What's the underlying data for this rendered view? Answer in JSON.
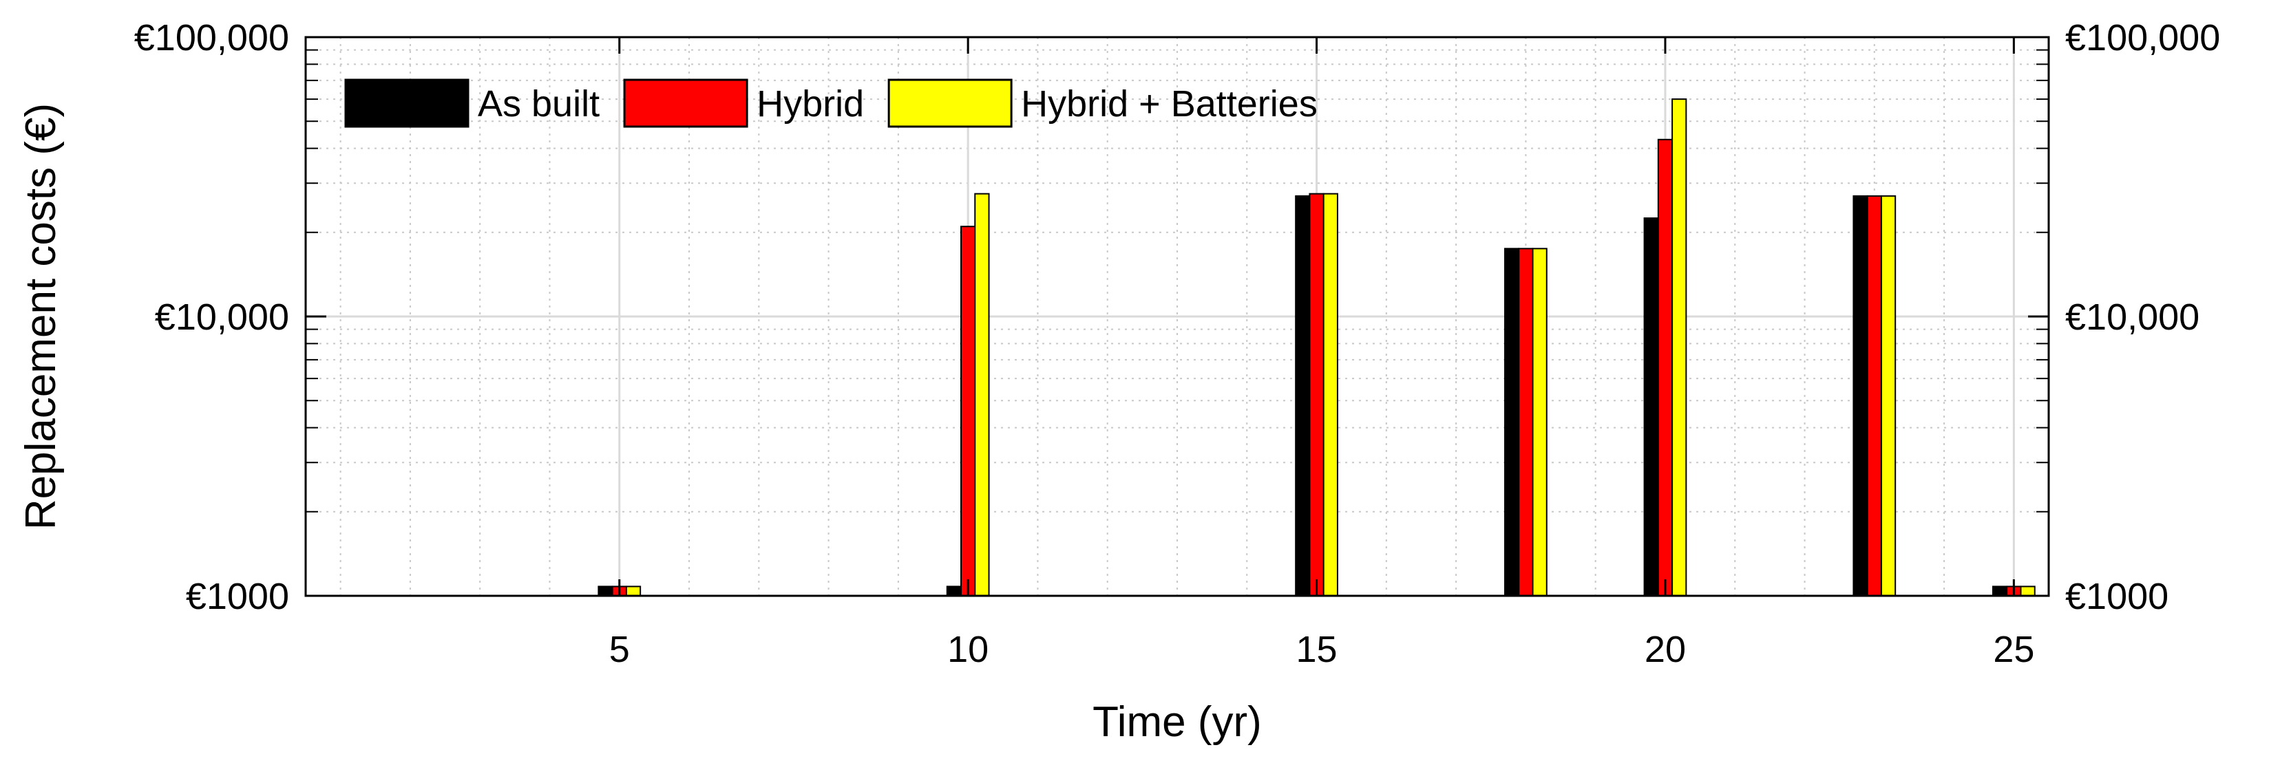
{
  "chart_data": {
    "type": "bar",
    "xlabel": "Time (yr)",
    "ylabel": "Replacement costs (€)",
    "yscale": "log",
    "ylim": [
      1000,
      100000
    ],
    "xlim": [
      0.5,
      25.5
    ],
    "grid": true,
    "legend_position": "top-left",
    "x_ticks": [
      5,
      10,
      15,
      20,
      25
    ],
    "x_tick_labels": [
      "5",
      "10",
      "15",
      "20",
      "25"
    ],
    "y_ticks": [
      1000,
      10000,
      100000
    ],
    "y_tick_labels": [
      "€1000",
      "€10,000",
      "€100,000"
    ],
    "x": [
      5,
      10,
      15,
      18,
      20,
      23,
      25
    ],
    "series": [
      {
        "name": "As built",
        "color": "#000000",
        "values": [
          1080,
          1080,
          27000,
          17500,
          22500,
          27000,
          1080
        ]
      },
      {
        "name": "Hybrid",
        "color": "#ff0000",
        "values": [
          1080,
          21000,
          27500,
          17500,
          43000,
          27000,
          1080
        ]
      },
      {
        "name": "Hybrid + Batteries",
        "color": "#ffff00",
        "values": [
          1080,
          27500,
          27500,
          17500,
          60000,
          27000,
          1080
        ]
      }
    ]
  }
}
